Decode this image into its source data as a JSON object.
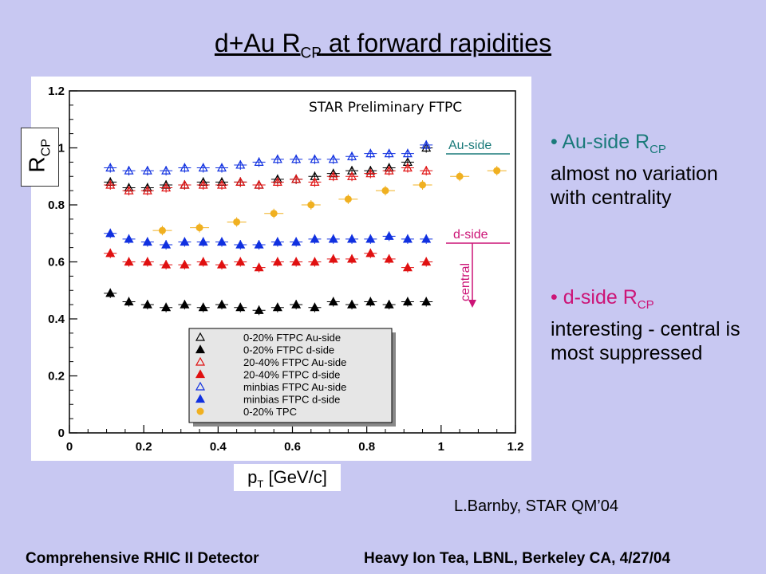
{
  "slide": {
    "title_main": "d+Au R",
    "title_sub": "CP",
    "title_rest": " at forward rapidities",
    "credit": "L.Barnby, STAR QM’04",
    "footer_left": "Comprehensive RHIC II Detector",
    "footer_right": "Heavy Ion Tea, LBNL, Berkeley CA, 4/27/04"
  },
  "bullets": [
    {
      "lead": "Au-side R",
      "sub": "CP",
      "rest": "almost no variation with centrality",
      "color": "#1a7a7a"
    },
    {
      "lead": "d-side R",
      "sub": "CP",
      "rest": "interesting - central is most suppressed",
      "color": "#cc1477"
    }
  ],
  "chart_data": {
    "type": "scatter",
    "annotation": "STAR Preliminary FTPC",
    "ylabel_main": "R",
    "ylabel_sub": "CP",
    "xlabel_main": "p",
    "xlabel_sub": "T",
    "xlabel_rest": " [GeV/c]",
    "xlim": [
      0,
      1.2
    ],
    "ylim": [
      0,
      1.2
    ],
    "xticks": [
      "0",
      "0.2",
      "0.4",
      "0.6",
      "0.8",
      "1",
      "1.2"
    ],
    "yticks": [
      "0",
      "0.2",
      "0.4",
      "0.6",
      "0.8",
      "1",
      "1.2"
    ],
    "labels": {
      "au_side": "Au-side",
      "d_side": "d-side",
      "central": "central"
    },
    "series": [
      {
        "name": "0-20% FTPC Au-side",
        "color": "#000000",
        "marker": "triangle-open",
        "x": [
          0.11,
          0.16,
          0.21,
          0.26,
          0.31,
          0.36,
          0.41,
          0.46,
          0.51,
          0.56,
          0.61,
          0.66,
          0.71,
          0.76,
          0.81,
          0.86,
          0.91,
          0.96
        ],
        "y": [
          0.88,
          0.86,
          0.86,
          0.87,
          0.87,
          0.88,
          0.88,
          0.88,
          0.87,
          0.89,
          0.89,
          0.9,
          0.91,
          0.92,
          0.92,
          0.93,
          0.95,
          1.0
        ]
      },
      {
        "name": "0-20% FTPC d-side",
        "color": "#000000",
        "marker": "triangle-filled",
        "x": [
          0.11,
          0.16,
          0.21,
          0.26,
          0.31,
          0.36,
          0.41,
          0.46,
          0.51,
          0.56,
          0.61,
          0.66,
          0.71,
          0.76,
          0.81,
          0.86,
          0.91,
          0.96
        ],
        "y": [
          0.49,
          0.46,
          0.45,
          0.44,
          0.45,
          0.44,
          0.45,
          0.44,
          0.43,
          0.44,
          0.45,
          0.44,
          0.46,
          0.45,
          0.46,
          0.45,
          0.46,
          0.46
        ]
      },
      {
        "name": "20-40% FTPC Au-side",
        "color": "#e01010",
        "marker": "triangle-open",
        "x": [
          0.11,
          0.16,
          0.21,
          0.26,
          0.31,
          0.36,
          0.41,
          0.46,
          0.51,
          0.56,
          0.61,
          0.66,
          0.71,
          0.76,
          0.81,
          0.86,
          0.91,
          0.96
        ],
        "y": [
          0.87,
          0.85,
          0.85,
          0.86,
          0.87,
          0.87,
          0.87,
          0.88,
          0.87,
          0.88,
          0.89,
          0.88,
          0.9,
          0.9,
          0.91,
          0.92,
          0.93,
          0.92
        ]
      },
      {
        "name": "20-40% FTPC d-side",
        "color": "#e01010",
        "marker": "triangle-filled",
        "x": [
          0.11,
          0.16,
          0.21,
          0.26,
          0.31,
          0.36,
          0.41,
          0.46,
          0.51,
          0.56,
          0.61,
          0.66,
          0.71,
          0.76,
          0.81,
          0.86,
          0.91,
          0.96
        ],
        "y": [
          0.63,
          0.6,
          0.6,
          0.59,
          0.59,
          0.6,
          0.59,
          0.6,
          0.58,
          0.6,
          0.6,
          0.6,
          0.61,
          0.61,
          0.63,
          0.61,
          0.58,
          0.6
        ]
      },
      {
        "name": "minbias FTPC Au-side",
        "color": "#1030e0",
        "marker": "triangle-open",
        "x": [
          0.11,
          0.16,
          0.21,
          0.26,
          0.31,
          0.36,
          0.41,
          0.46,
          0.51,
          0.56,
          0.61,
          0.66,
          0.71,
          0.76,
          0.81,
          0.86,
          0.91,
          0.96
        ],
        "y": [
          0.93,
          0.92,
          0.92,
          0.92,
          0.93,
          0.93,
          0.93,
          0.94,
          0.95,
          0.96,
          0.96,
          0.96,
          0.96,
          0.97,
          0.98,
          0.98,
          0.98,
          1.01
        ]
      },
      {
        "name": "minbias FTPC d-side",
        "color": "#1030e0",
        "marker": "triangle-filled",
        "x": [
          0.11,
          0.16,
          0.21,
          0.26,
          0.31,
          0.36,
          0.41,
          0.46,
          0.51,
          0.56,
          0.61,
          0.66,
          0.71,
          0.76,
          0.81,
          0.86,
          0.91,
          0.96
        ],
        "y": [
          0.7,
          0.68,
          0.67,
          0.66,
          0.67,
          0.67,
          0.67,
          0.66,
          0.66,
          0.67,
          0.67,
          0.68,
          0.68,
          0.68,
          0.68,
          0.69,
          0.68,
          0.68
        ]
      },
      {
        "name": "0-20% TPC",
        "color": "#f0b020",
        "marker": "circle-filled",
        "x": [
          0.25,
          0.35,
          0.45,
          0.55,
          0.65,
          0.75,
          0.85,
          0.95,
          1.05,
          1.15
        ],
        "y": [
          0.71,
          0.72,
          0.74,
          0.77,
          0.8,
          0.82,
          0.85,
          0.87,
          0.9,
          0.92
        ]
      }
    ]
  }
}
